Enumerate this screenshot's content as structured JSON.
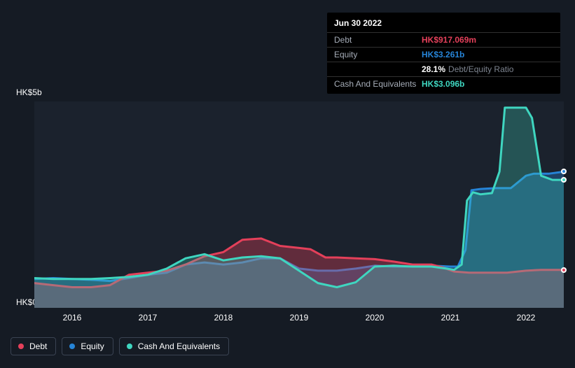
{
  "chart": {
    "type": "area-line",
    "background_color": "#151b24",
    "plot_background": "#1b222d",
    "y_axis": {
      "labels": {
        "max": "HK$5b",
        "min": "HK$0"
      },
      "ylim": [
        0,
        5
      ],
      "label_fontsize": 12,
      "label_color": "#ffffff"
    },
    "x_axis": {
      "ticks": [
        {
          "label": "2016",
          "t": 0.5
        },
        {
          "label": "2017",
          "t": 1.5
        },
        {
          "label": "2018",
          "t": 2.5
        },
        {
          "label": "2019",
          "t": 3.5
        },
        {
          "label": "2020",
          "t": 4.5
        },
        {
          "label": "2021",
          "t": 5.5
        },
        {
          "label": "2022",
          "t": 6.5
        }
      ],
      "xlim": [
        0,
        7
      ],
      "label_fontsize": 12,
      "label_color": "#ffffff"
    },
    "series": [
      {
        "id": "debt",
        "label": "Debt",
        "line_color": "#e4405a",
        "fill_color": "rgba(228,64,90,0.35)",
        "line_width": 3,
        "z": 2,
        "points": [
          [
            0.0,
            0.6
          ],
          [
            0.25,
            0.55
          ],
          [
            0.5,
            0.5
          ],
          [
            0.75,
            0.5
          ],
          [
            1.0,
            0.55
          ],
          [
            1.25,
            0.8
          ],
          [
            1.5,
            0.85
          ],
          [
            1.75,
            0.9
          ],
          [
            2.0,
            1.05
          ],
          [
            2.25,
            1.25
          ],
          [
            2.5,
            1.35
          ],
          [
            2.75,
            1.65
          ],
          [
            3.0,
            1.68
          ],
          [
            3.25,
            1.5
          ],
          [
            3.5,
            1.45
          ],
          [
            3.65,
            1.42
          ],
          [
            3.85,
            1.22
          ],
          [
            4.0,
            1.22
          ],
          [
            4.25,
            1.2
          ],
          [
            4.5,
            1.18
          ],
          [
            4.75,
            1.12
          ],
          [
            5.0,
            1.05
          ],
          [
            5.25,
            1.05
          ],
          [
            5.4,
            0.98
          ],
          [
            5.55,
            0.88
          ],
          [
            5.75,
            0.85
          ],
          [
            6.0,
            0.85
          ],
          [
            6.25,
            0.85
          ],
          [
            6.5,
            0.9
          ],
          [
            6.7,
            0.92
          ],
          [
            6.85,
            0.92
          ],
          [
            7.0,
            0.92
          ]
        ]
      },
      {
        "id": "equity",
        "label": "Equity",
        "line_color": "#2684d7",
        "fill_color": "rgba(38,132,215,0.35)",
        "line_width": 3,
        "z": 1,
        "points": [
          [
            0.0,
            0.7
          ],
          [
            0.25,
            0.72
          ],
          [
            0.5,
            0.7
          ],
          [
            0.75,
            0.68
          ],
          [
            1.0,
            0.65
          ],
          [
            1.25,
            0.72
          ],
          [
            1.5,
            0.8
          ],
          [
            1.75,
            0.85
          ],
          [
            2.0,
            1.05
          ],
          [
            2.25,
            1.1
          ],
          [
            2.5,
            1.05
          ],
          [
            2.75,
            1.1
          ],
          [
            3.0,
            1.2
          ],
          [
            3.25,
            1.2
          ],
          [
            3.5,
            0.95
          ],
          [
            3.75,
            0.9
          ],
          [
            4.0,
            0.9
          ],
          [
            4.25,
            0.95
          ],
          [
            4.5,
            1.02
          ],
          [
            4.75,
            1.0
          ],
          [
            5.0,
            1.0
          ],
          [
            5.25,
            1.02
          ],
          [
            5.5,
            1.0
          ],
          [
            5.6,
            1.0
          ],
          [
            5.7,
            1.4
          ],
          [
            5.78,
            2.85
          ],
          [
            5.9,
            2.88
          ],
          [
            6.1,
            2.9
          ],
          [
            6.3,
            2.9
          ],
          [
            6.5,
            3.2
          ],
          [
            6.6,
            3.25
          ],
          [
            6.8,
            3.25
          ],
          [
            7.0,
            3.3
          ]
        ]
      },
      {
        "id": "cash",
        "label": "Cash And Equivalents",
        "line_color": "#3fd6c0",
        "fill_color": "rgba(63,214,192,0.28)",
        "line_width": 3,
        "z": 3,
        "points": [
          [
            0.0,
            0.72
          ],
          [
            0.25,
            0.7
          ],
          [
            0.5,
            0.7
          ],
          [
            0.75,
            0.7
          ],
          [
            1.0,
            0.72
          ],
          [
            1.25,
            0.75
          ],
          [
            1.5,
            0.8
          ],
          [
            1.75,
            0.95
          ],
          [
            2.0,
            1.2
          ],
          [
            2.25,
            1.3
          ],
          [
            2.5,
            1.15
          ],
          [
            2.75,
            1.22
          ],
          [
            3.0,
            1.25
          ],
          [
            3.25,
            1.2
          ],
          [
            3.5,
            0.9
          ],
          [
            3.75,
            0.6
          ],
          [
            4.0,
            0.5
          ],
          [
            4.25,
            0.62
          ],
          [
            4.5,
            1.0
          ],
          [
            4.75,
            1.02
          ],
          [
            5.0,
            1.0
          ],
          [
            5.25,
            1.0
          ],
          [
            5.45,
            0.95
          ],
          [
            5.55,
            0.92
          ],
          [
            5.65,
            1.05
          ],
          [
            5.72,
            2.6
          ],
          [
            5.8,
            2.8
          ],
          [
            5.9,
            2.75
          ],
          [
            6.05,
            2.78
          ],
          [
            6.15,
            3.3
          ],
          [
            6.22,
            4.85
          ],
          [
            6.35,
            4.85
          ],
          [
            6.5,
            4.85
          ],
          [
            6.58,
            4.6
          ],
          [
            6.7,
            3.2
          ],
          [
            6.85,
            3.1
          ],
          [
            7.0,
            3.1
          ]
        ]
      }
    ],
    "end_markers": [
      {
        "series": "debt",
        "t": 7.0,
        "v": 0.92,
        "color": "#e4405a"
      },
      {
        "series": "equity",
        "t": 7.0,
        "v": 3.3,
        "color": "#2684d7"
      },
      {
        "series": "cash",
        "t": 7.0,
        "v": 3.1,
        "color": "#3fd6c0"
      }
    ],
    "legend": {
      "position": "bottom-left",
      "border_color": "#3a4352",
      "text_color": "#ffffff",
      "fontsize": 12
    }
  },
  "tooltip": {
    "title": "Jun 30 2022",
    "rows": [
      {
        "label": "Debt",
        "value": "HK$917.069m",
        "value_color": "#e4405a"
      },
      {
        "label": "Equity",
        "value": "HK$3.261b",
        "value_color": "#2684d7"
      },
      {
        "label": "",
        "pct": "28.1%",
        "sub": "Debt/Equity Ratio"
      },
      {
        "label": "Cash And Equivalents",
        "value": "HK$3.096b",
        "value_color": "#3fd6c0"
      }
    ],
    "background": "#000000",
    "label_color": "#a6adb8"
  }
}
